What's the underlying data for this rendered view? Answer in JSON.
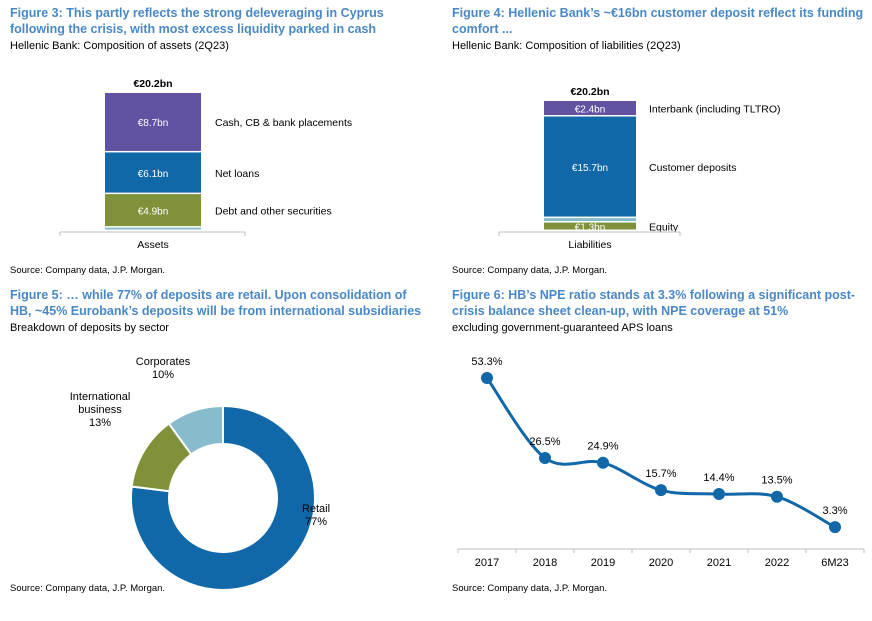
{
  "colors": {
    "title": "#4a88c5",
    "purple": "#6351a2",
    "blue": "#1068a9",
    "olive": "#7f9239",
    "light_blue": "#86bccb",
    "line": "#1068a9"
  },
  "figures": [
    {
      "title": "Figure 3: This partly reflects the strong deleveraging in Cyprus following the crisis, with most excess liquidity parked in cash",
      "subtitle": "Hellenic Bank: Composition of assets (2Q23)",
      "source": "Source: Company data, J.P. Morgan."
    },
    {
      "title": "Figure 4: Hellenic Bank’s ~€16bn customer deposit reflect its funding comfort ...",
      "subtitle": "Hellenic Bank: Composition of liabilities (2Q23)",
      "source": "Source: Company data, J.P. Morgan."
    },
    {
      "title": "Figure 5: … while 77% of deposits are retail. Upon consolidation of HB, ~45% Eurobank’s deposits will be from international subsidiaries",
      "subtitle": "Breakdown of deposits by sector",
      "source": "Source: Company data, J.P. Morgan."
    },
    {
      "title": "Figure 6: HB’s NPE ratio stands at 3.3% following a significant post-crisis balance sheet clean-up, with NPE coverage at 51%",
      "subtitle": "excluding government-guaranteed APS loans",
      "source": "Source: Company data, J.P. Morgan."
    }
  ],
  "chart_data": [
    {
      "type": "bar",
      "stacked": true,
      "categories": [
        "Assets"
      ],
      "total_label": "€20.2bn",
      "series": [
        {
          "name": "Cash, CB & bank placements",
          "values": [
            8.7
          ],
          "label": "€8.7bn",
          "color": "#6351a2"
        },
        {
          "name": "Net loans",
          "values": [
            6.1
          ],
          "label": "€6.1bn",
          "color": "#1068a9"
        },
        {
          "name": "Debt and other securities",
          "values": [
            4.9
          ],
          "label": "€4.9bn",
          "color": "#7f9239"
        },
        {
          "name": "",
          "values": [
            0.5
          ],
          "label": "",
          "color": "#86bccb"
        }
      ]
    },
    {
      "type": "bar",
      "stacked": true,
      "categories": [
        "Liabilities"
      ],
      "total_label": "€20.2bn",
      "series": [
        {
          "name": "Interbank (including TLTRO)",
          "values": [
            2.4
          ],
          "label": "€2.4bn",
          "color": "#6351a2"
        },
        {
          "name": "Customer deposits",
          "values": [
            15.7
          ],
          "label": "€15.7bn",
          "color": "#1068a9"
        },
        {
          "name": "",
          "values": [
            0.7
          ],
          "label": "",
          "color": "#86bccb"
        },
        {
          "name": "Equity",
          "values": [
            1.3
          ],
          "label": "€1.3bn",
          "color": "#7f9239"
        }
      ]
    },
    {
      "type": "pie",
      "donut": true,
      "slices": [
        {
          "label": "Retail",
          "value": 77,
          "value_label": "77%",
          "color": "#1068a9"
        },
        {
          "label": "International business",
          "value": 13,
          "value_label": "13%",
          "color": "#7f9239"
        },
        {
          "label": "Corporates",
          "value": 10,
          "value_label": "10%",
          "color": "#86bccb"
        }
      ]
    },
    {
      "type": "line",
      "categories": [
        "2017",
        "2018",
        "2019",
        "2020",
        "2021",
        "2022",
        "6M23"
      ],
      "values": [
        53.3,
        26.5,
        24.9,
        15.7,
        14.4,
        13.5,
        3.3
      ],
      "value_labels": [
        "53.3%",
        "26.5%",
        "24.9%",
        "15.7%",
        "14.4%",
        "13.5%",
        "3.3%"
      ],
      "ylim": [
        0,
        60
      ]
    }
  ]
}
